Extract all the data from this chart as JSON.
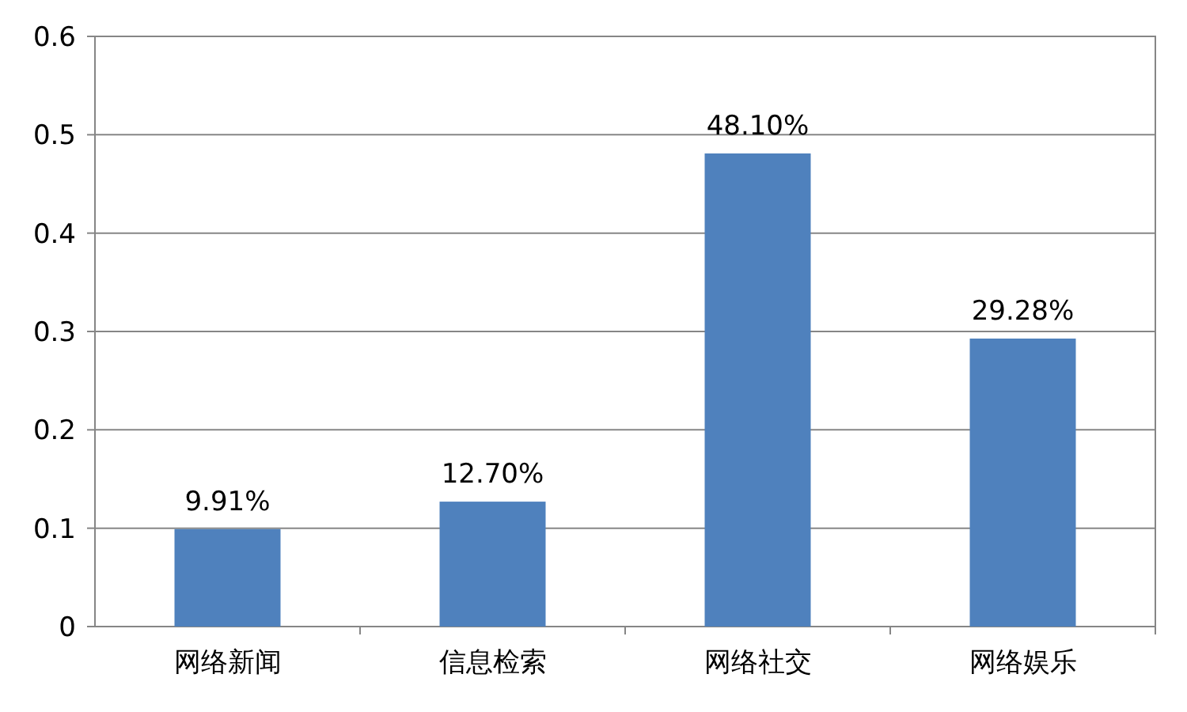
{
  "chart_data": {
    "type": "bar",
    "categories": [
      "网络新闻",
      "信息检索",
      "网络社交",
      "网络娱乐"
    ],
    "values": [
      0.0991,
      0.127,
      0.481,
      0.2928
    ],
    "value_labels": [
      "9.91%",
      "12.70%",
      "48.10%",
      "29.28%"
    ],
    "color": "#4f81bd",
    "ylim": [
      0,
      0.6
    ],
    "yticks": [
      0,
      0.1,
      0.2,
      0.3,
      0.4,
      0.5,
      0.6
    ],
    "grid": "y"
  }
}
